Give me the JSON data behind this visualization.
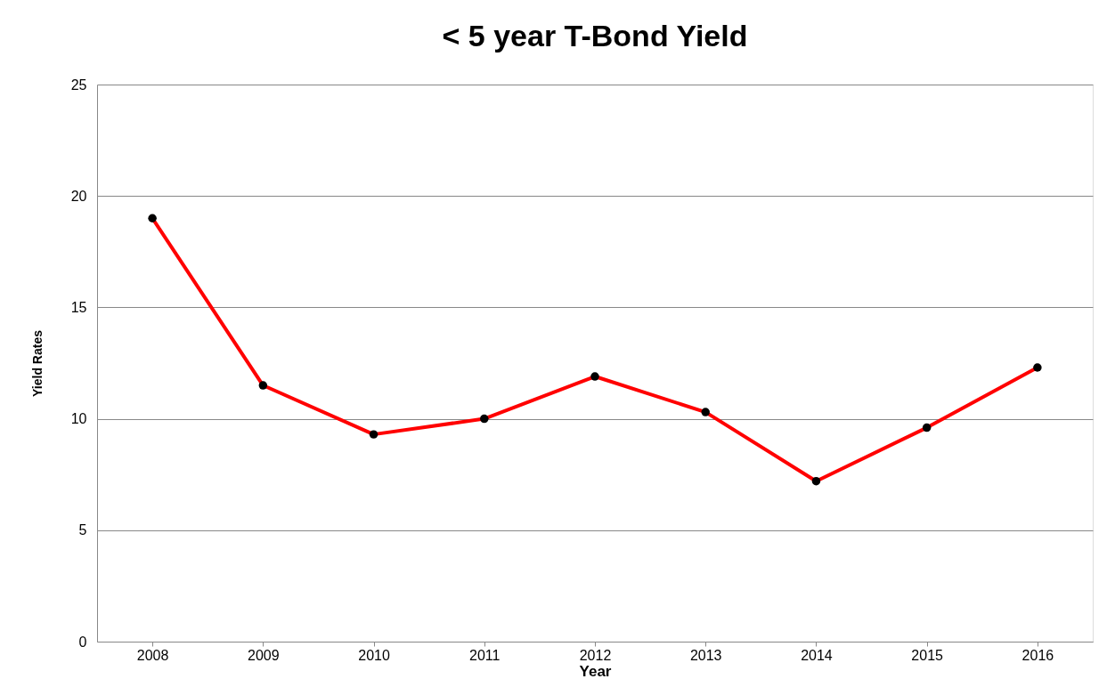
{
  "chart_data": {
    "type": "line",
    "title": "< 5 year T-Bond Yield",
    "xlabel": "Year",
    "ylabel": "Yield Rates",
    "categories": [
      "2008",
      "2009",
      "2010",
      "2011",
      "2012",
      "2013",
      "2014",
      "2015",
      "2016"
    ],
    "series": [
      {
        "color": "#ff0000",
        "values": [
          19,
          11.5,
          9.3,
          10,
          11.9,
          10.3,
          7.2,
          9.6,
          12.3
        ]
      }
    ],
    "ylim": [
      0,
      25
    ],
    "yticks": [
      0,
      5,
      10,
      15,
      20,
      25
    ],
    "grid": "y",
    "marker": "circle",
    "legend": false
  }
}
